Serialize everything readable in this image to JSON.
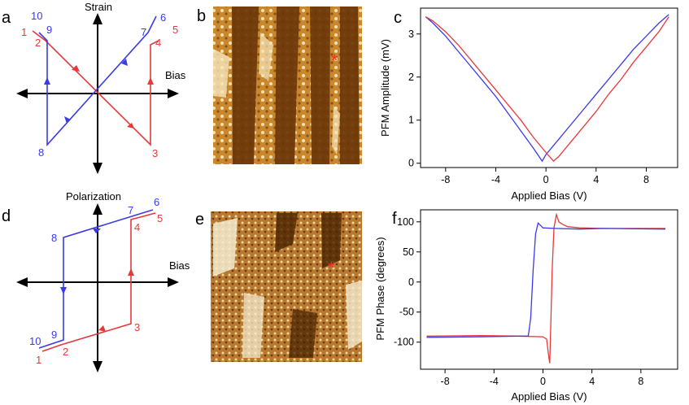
{
  "panel_labels": [
    "a",
    "b",
    "c",
    "d",
    "e",
    "f"
  ],
  "colors": {
    "red": "#e8383a",
    "blue": "#3a3ae8",
    "black": "#000000",
    "marker": "#ff2a2a"
  },
  "schematic_a": {
    "vertical_axis_label": "Strain",
    "horizontal_axis_label": "Bias",
    "red_points": [
      "1",
      "2",
      "3",
      "4",
      "5"
    ],
    "blue_points": [
      "6",
      "7",
      "8",
      "9",
      "10"
    ]
  },
  "schematic_d": {
    "vertical_axis_label": "Polarization",
    "horizontal_axis_label": "Bias",
    "red_points": [
      "1",
      "2",
      "3",
      "4",
      "5"
    ],
    "blue_points": [
      "6",
      "7",
      "8",
      "9",
      "10"
    ]
  },
  "image_b": {
    "type": "PFM amplitude image",
    "marker": "*"
  },
  "image_e": {
    "type": "PFM phase image",
    "marker": "*"
  },
  "chart_data": [
    {
      "panel": "c",
      "type": "line",
      "xlabel": "Applied Bias (V)",
      "ylabel": "PFM Amplitude (mV)",
      "xlim": [
        -10,
        10.5
      ],
      "ylim": [
        -0.1,
        3.6
      ],
      "xticks": [
        -8,
        -4,
        0,
        4,
        8
      ],
      "yticks": [
        0,
        1,
        2,
        3
      ],
      "series": [
        {
          "color": "#3a3ae8",
          "x": [
            -9.6,
            -9,
            -8,
            -7,
            -6,
            -5,
            -4,
            -3,
            -2,
            -1,
            -0.3,
            0,
            1,
            2,
            3,
            4,
            5,
            6,
            7,
            8,
            9,
            9.8
          ],
          "y": [
            3.4,
            3.25,
            2.95,
            2.6,
            2.25,
            1.9,
            1.55,
            1.15,
            0.75,
            0.35,
            0.05,
            0.2,
            0.55,
            0.9,
            1.25,
            1.6,
            1.95,
            2.3,
            2.65,
            2.95,
            3.25,
            3.45
          ]
        },
        {
          "color": "#e8383a",
          "x": [
            -9.6,
            -9,
            -8,
            -7,
            -6,
            -5,
            -4,
            -3,
            -2,
            -1,
            0,
            0.6,
            1,
            2,
            3,
            4,
            5,
            6,
            7,
            8,
            9,
            9.8
          ],
          "y": [
            3.4,
            3.3,
            3.05,
            2.75,
            2.4,
            2.05,
            1.7,
            1.35,
            1.0,
            0.6,
            0.25,
            0.05,
            0.15,
            0.5,
            0.85,
            1.2,
            1.6,
            1.95,
            2.35,
            2.7,
            3.05,
            3.4
          ]
        }
      ]
    },
    {
      "panel": "f",
      "type": "line",
      "xlabel": "Applied Bias (V)",
      "ylabel": "PFM Phase (degrees)",
      "xlim": [
        -10,
        11
      ],
      "ylim": [
        -145,
        120
      ],
      "xticks": [
        -8,
        -4,
        0,
        4,
        8
      ],
      "yticks": [
        100,
        50,
        0,
        -50,
        -100
      ],
      "series": [
        {
          "color": "#e8383a",
          "x": [
            -9.5,
            -5,
            -2,
            0,
            0.3,
            0.45,
            0.55,
            0.65,
            0.75,
            0.9,
            1.1,
            1.3,
            1.6,
            2,
            3,
            5,
            10
          ],
          "y": [
            -90,
            -89,
            -90,
            -91,
            -95,
            -120,
            -135,
            -60,
            20,
            90,
            112,
            100,
            96,
            92,
            90,
            89,
            89
          ]
        },
        {
          "color": "#3a3ae8",
          "x": [
            -9.5,
            -5,
            -2,
            -1.2,
            -1.0,
            -0.8,
            -0.6,
            -0.4,
            -0.2,
            0,
            1,
            3,
            5,
            10
          ],
          "y": [
            -92,
            -91,
            -90,
            -90,
            -60,
            20,
            80,
            98,
            94,
            90,
            89,
            88,
            89,
            88
          ]
        }
      ]
    }
  ]
}
